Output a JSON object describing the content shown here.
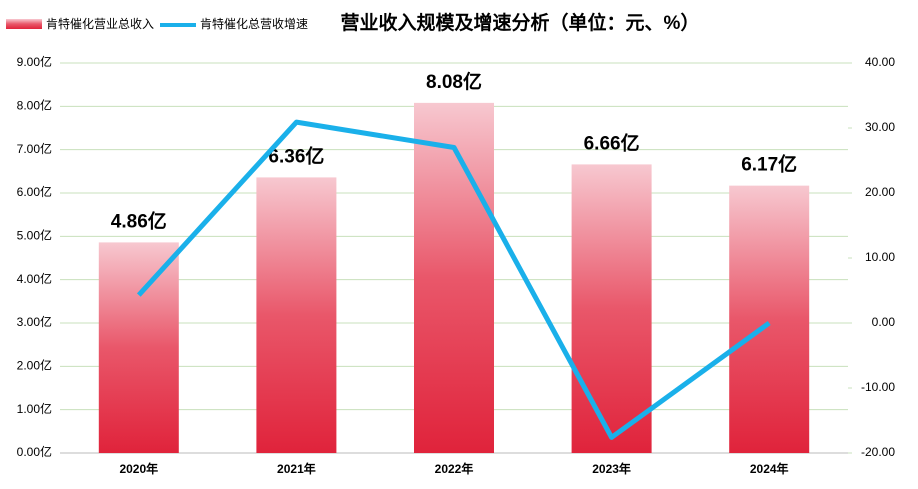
{
  "chart_data": {
    "type": "bar",
    "title": "营业收入规模及增速分析（单位：元、%）",
    "categories": [
      "2020年",
      "2021年",
      "2022年",
      "2023年",
      "2024年"
    ],
    "series": [
      {
        "name": "肯特催化营业总收入",
        "type": "bar",
        "color": "#e0233b",
        "values": [
          4.86,
          6.36,
          8.08,
          6.66,
          6.17
        ],
        "value_labels": [
          "4.86亿",
          "6.36亿",
          "8.08亿",
          "6.66亿",
          "6.17亿"
        ]
      },
      {
        "name": "肯特催化总营收增速",
        "type": "line",
        "axis": "y2",
        "color": "#1ab0ea",
        "values": [
          4.3,
          30.9,
          27.0,
          -17.6,
          0.0
        ]
      }
    ],
    "ylim": [
      0,
      9
    ],
    "yticks": [
      {
        "value": 0,
        "label": "0.00亿"
      },
      {
        "value": 1,
        "label": "1.00亿"
      },
      {
        "value": 2,
        "label": "2.00亿"
      },
      {
        "value": 3,
        "label": "3.00亿"
      },
      {
        "value": 4,
        "label": "4.00亿"
      },
      {
        "value": 5,
        "label": "5.00亿"
      },
      {
        "value": 6,
        "label": "6.00亿"
      },
      {
        "value": 7,
        "label": "7.00亿"
      },
      {
        "value": 8,
        "label": "8.00亿"
      },
      {
        "value": 9,
        "label": "9.00亿"
      }
    ],
    "y2lim": [
      -20,
      40
    ],
    "y2ticks": [
      {
        "value": -20,
        "label": "-20.00"
      },
      {
        "value": -10,
        "label": "-10.00"
      },
      {
        "value": 0,
        "label": "0.00"
      },
      {
        "value": 10,
        "label": "10.00"
      },
      {
        "value": 20,
        "label": "20.00"
      },
      {
        "value": 30,
        "label": "30.00"
      },
      {
        "value": 40,
        "label": "40.00"
      }
    ],
    "grid": true,
    "grid_color": "#c8e0bc"
  }
}
